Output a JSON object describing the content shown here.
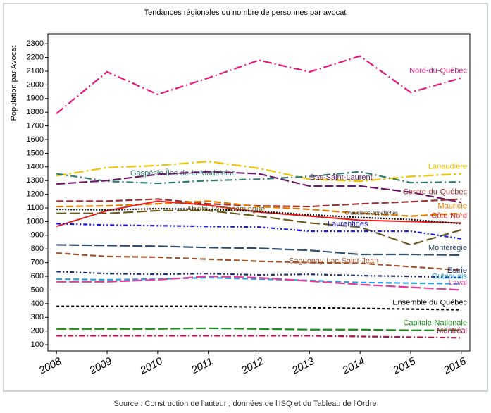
{
  "chart_data": {
    "type": "line",
    "title": "Tendances régionales du nombre de personnes par avocat",
    "y_label": "Population par Avocat",
    "source": "Source : Construction de l'auteur ; données de l'ISQ et du Tableau de l'Ordre",
    "x": [
      2008,
      2009,
      2010,
      2011,
      2012,
      2013,
      2014,
      2015,
      2016
    ],
    "xlim": [
      2007.83,
      2016.17
    ],
    "xticks": [
      2008,
      2009,
      2010,
      2011,
      2012,
      2013,
      2014,
      2015,
      2016
    ],
    "ylim": [
      54,
      2373
    ],
    "yticks": [
      100,
      200,
      300,
      400,
      500,
      600,
      700,
      800,
      900,
      1000,
      1100,
      1200,
      1300,
      1400,
      1500,
      1600,
      1700,
      1800,
      1900,
      2000,
      2100,
      2200,
      2300
    ],
    "series": [
      {
        "name": "Nord-du-Québec",
        "color": "#e8177d",
        "values": [
          1790,
          2095,
          1930,
          2050,
          2180,
          2095,
          2210,
          1945,
          2050
        ]
      },
      {
        "name": "Lanaudière",
        "color": "#f0c400",
        "values": [
          1335,
          1395,
          1410,
          1440,
          1390,
          1310,
          1295,
          1330,
          1350
        ]
      },
      {
        "name": "Gaspésie-Îles-de-la-Madeleine",
        "color": "#2e7d6e",
        "values": [
          1350,
          1295,
          1280,
          1300,
          1310,
          1330,
          1365,
          1285,
          1290
        ]
      },
      {
        "name": "Bas-Saint-Laurent",
        "color": "#6a1a6a",
        "values": [
          1275,
          1300,
          1345,
          1365,
          1350,
          1260,
          1260,
          1215,
          1140
        ]
      },
      {
        "name": "Centre-du-Québec",
        "color": "#9b3030",
        "values": [
          1150,
          1150,
          1165,
          1130,
          1115,
          1110,
          1130,
          1145,
          1165
        ]
      },
      {
        "name": "Mauricie",
        "color": "#e07b00",
        "values": [
          1110,
          1115,
          1130,
          1150,
          1110,
          1090,
          1060,
          1040,
          1060
        ]
      },
      {
        "name": "Côte-Nord",
        "color": "#e8201e",
        "values": [
          965,
          1080,
          1150,
          1120,
          1070,
          1040,
          1010,
          1000,
          990
        ]
      },
      {
        "name": "Abitibi-Témiscamingue",
        "color": "#6b5a1e",
        "values": [
          1060,
          1060,
          1080,
          1080,
          1040,
          990,
          960,
          830,
          940
        ]
      },
      {
        "name": "Chaudières-Appalaches",
        "color": "#111111",
        "values": [
          1090,
          1085,
          1095,
          1090,
          1075,
          1050,
          1030,
          1015,
          985
        ]
      },
      {
        "name": "Laurentides",
        "color": "#1a1ae6",
        "values": [
          985,
          975,
          970,
          965,
          960,
          930,
          930,
          930,
          875
        ]
      },
      {
        "name": "Montérégie",
        "color": "#2f4f6f",
        "values": [
          830,
          825,
          820,
          810,
          805,
          790,
          760,
          760,
          755
        ]
      },
      {
        "name": "Saguenay-Lac-Saint-Jean",
        "color": "#a0522d",
        "values": [
          770,
          745,
          740,
          725,
          710,
          700,
          695,
          670,
          645
        ]
      },
      {
        "name": "Estrie",
        "color": "#1f2f6f",
        "values": [
          635,
          620,
          615,
          620,
          610,
          615,
          605,
          600,
          590
        ]
      },
      {
        "name": "Outaouais",
        "color": "#2aa0e0",
        "values": [
          580,
          575,
          580,
          590,
          580,
          570,
          555,
          550,
          545
        ]
      },
      {
        "name": "Laval",
        "color": "#e0409a",
        "values": [
          560,
          560,
          575,
          600,
          590,
          565,
          540,
          520,
          500
        ]
      },
      {
        "name": "Ensemble du Québec",
        "color": "#000000",
        "values": [
          380,
          380,
          380,
          380,
          375,
          370,
          365,
          360,
          355
        ]
      },
      {
        "name": "Capitale-Nationale",
        "color": "#1a8a1a",
        "values": [
          215,
          215,
          215,
          220,
          215,
          210,
          210,
          205,
          205
        ]
      },
      {
        "name": "Montréal",
        "color": "#b0104a",
        "values": [
          165,
          165,
          165,
          165,
          165,
          165,
          160,
          155,
          150
        ]
      }
    ]
  }
}
